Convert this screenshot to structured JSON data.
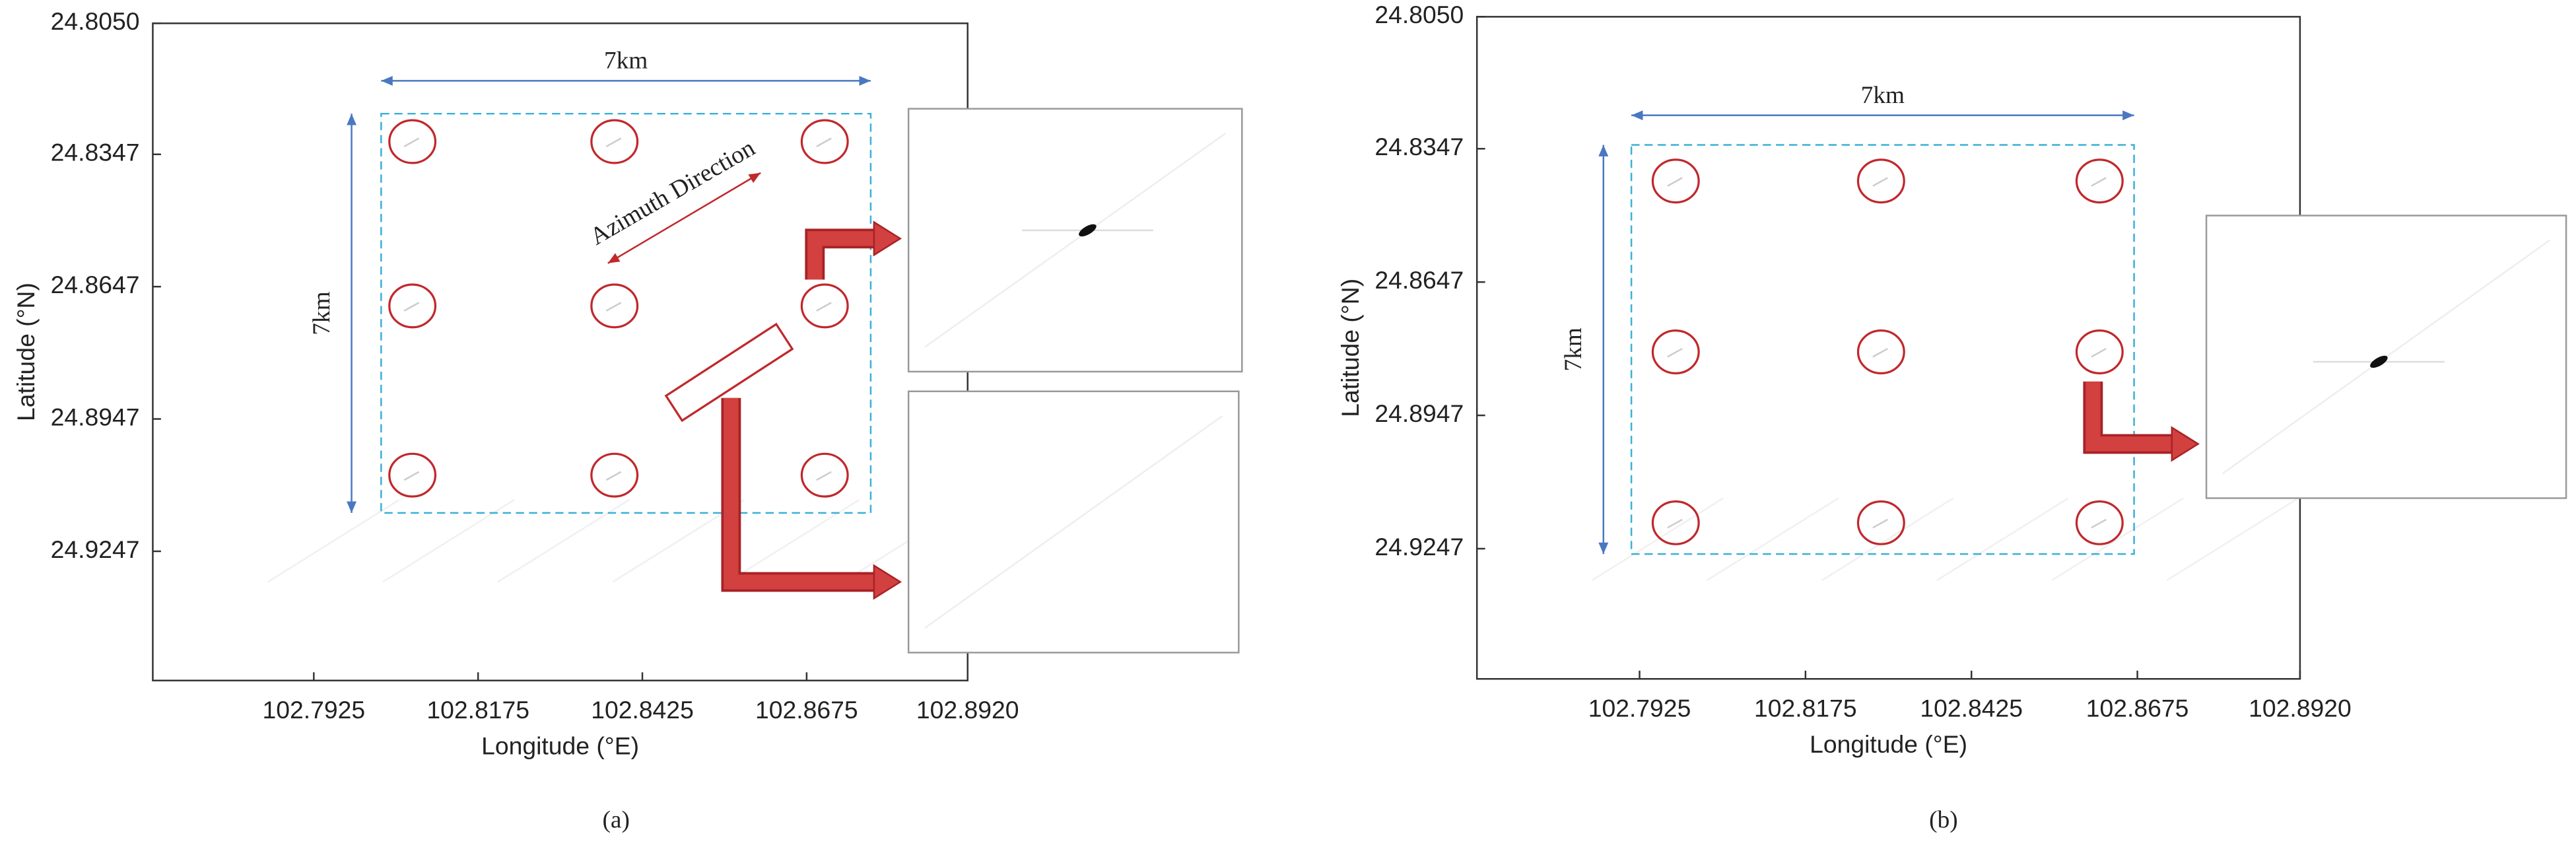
{
  "chart_data": [
    {
      "type": "image",
      "xlabel": "Longitude (°E)",
      "ylabel": "Latitude (°N)",
      "xlim": [
        102.768,
        102.892
      ],
      "ylim": [
        24.954,
        24.805
      ],
      "xticks": [
        102.7925,
        102.8175,
        102.8425,
        102.8675,
        {
          "value": 102.892,
          "label": "102.8920"
        }
      ],
      "yticks": [
        {
          "value": 24.805,
          "label": "24.8050"
        },
        24.8347,
        24.8647,
        24.8947,
        24.9247
      ],
      "annotations": [
        "7km",
        "7km",
        "Azimuth Direction"
      ],
      "caption": "(a)"
    },
    {
      "type": "image",
      "xlabel": "Longitude (°E)",
      "ylabel": "Latitude (°N)",
      "xlim": [
        102.768,
        102.892
      ],
      "ylim": [
        24.954,
        24.805
      ],
      "xticks": [
        102.7925,
        102.8175,
        102.8425,
        102.8675,
        {
          "value": 102.892,
          "label": "102.8920"
        }
      ],
      "yticks": [
        {
          "value": 24.805,
          "label": "24.8050"
        },
        24.8347,
        24.8647,
        24.8947,
        24.9247
      ],
      "annotations": [
        "7km",
        "7km"
      ],
      "caption": "(b)"
    }
  ]
}
